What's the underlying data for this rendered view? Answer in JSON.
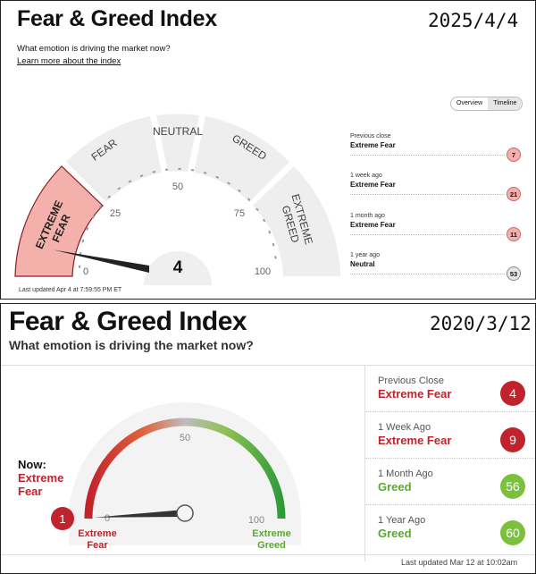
{
  "top": {
    "title": "Fear & Greed Index",
    "date": "2025/4/4",
    "question": "What emotion is driving the market now?",
    "learn_link": "Learn more about the index",
    "tabs": [
      "Overview",
      "Timeline"
    ],
    "gauge": {
      "segments": [
        "EXTREME FEAR",
        "FEAR",
        "NEUTRAL",
        "GREED",
        "EXTREME GREED"
      ],
      "ticks": [
        "0",
        "25",
        "50",
        "75",
        "100"
      ],
      "value": 4,
      "value_label": "4"
    },
    "history": [
      {
        "label": "Previous close",
        "rating": "Extreme Fear",
        "value": "7"
      },
      {
        "label": "1 week ago",
        "rating": "Extreme Fear",
        "value": "21"
      },
      {
        "label": "1 month ago",
        "rating": "Extreme Fear",
        "value": "11"
      },
      {
        "label": "1 year ago",
        "rating": "Neutral",
        "value": "53"
      }
    ],
    "last_updated": "Last updated Apr 4 at 7:59:55 PM ET",
    "colors": {
      "extreme_fear_fill": "#f4b1ab",
      "extreme_fear_border": "#8a1a26",
      "segment": "#eeeeee"
    }
  },
  "bottom": {
    "title": "Fear & Greed Index",
    "date": "2020/3/12",
    "question": "What emotion is driving the market now?",
    "now_label": "Now:",
    "now_rating_1": "Extreme",
    "now_rating_2": "Fear",
    "gauge": {
      "value": 1,
      "value_label": "1",
      "tick_0": "0",
      "tick_50": "50",
      "tick_100": "100",
      "left_label_1": "Extreme",
      "left_label_2": "Fear",
      "right_label_1": "Extreme",
      "right_label_2": "Greed"
    },
    "history": [
      {
        "label": "Previous Close",
        "rating": "Extreme Fear",
        "value": "4"
      },
      {
        "label": "1 Week Ago",
        "rating": "Extreme Fear",
        "value": "9"
      },
      {
        "label": "1 Month Ago",
        "rating": "Greed",
        "value": "56"
      },
      {
        "label": "1 Year Ago",
        "rating": "Greed",
        "value": "60"
      }
    ],
    "last_updated": "Last updated Mar 12 at 10:02am",
    "colors": {
      "red": "#c0232c",
      "green": "#5aa832",
      "green_circle": "#7cc13d"
    }
  }
}
